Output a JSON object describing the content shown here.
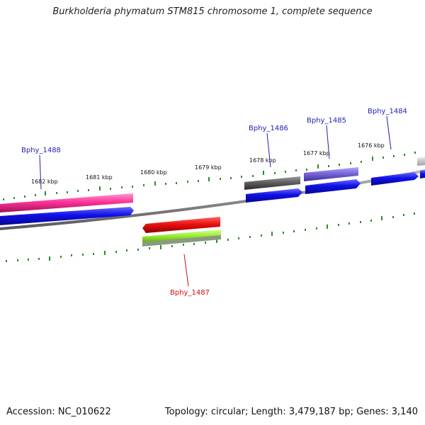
{
  "title": "Burkholderia phymatum STM815 chromosome 1, complete sequence",
  "footer": {
    "accession": "Accession: NC_010622",
    "topology": "Topology: circular; Length: 3,479,187 bp; Genes: 3,140"
  },
  "colors": {
    "backbone": "#8a8a8a",
    "tick": "#2e8b2e",
    "label_plus": "#1f1fb4",
    "label_minus": "#cc1111",
    "gene_blue": "#1010e8",
    "gene_pink": "#ff3399",
    "gene_gray": "#606060",
    "gene_purple": "#7766dd",
    "gene_red": "#ee1111",
    "gene_lime": "#99ee33"
  },
  "ruler_labels": [
    "1682 kbp",
    "1681 kbp",
    "1680 kbp",
    "1679 kbp",
    "1678 kbp",
    "1677 kbp",
    "1676 kbp"
  ],
  "gene_labels": {
    "bphy_1488": "Bphy_1488",
    "bphy_1487": "Bphy_1487",
    "bphy_1486": "Bphy_1486",
    "bphy_1485": "Bphy_1485",
    "bphy_1484": "Bphy_1484"
  }
}
